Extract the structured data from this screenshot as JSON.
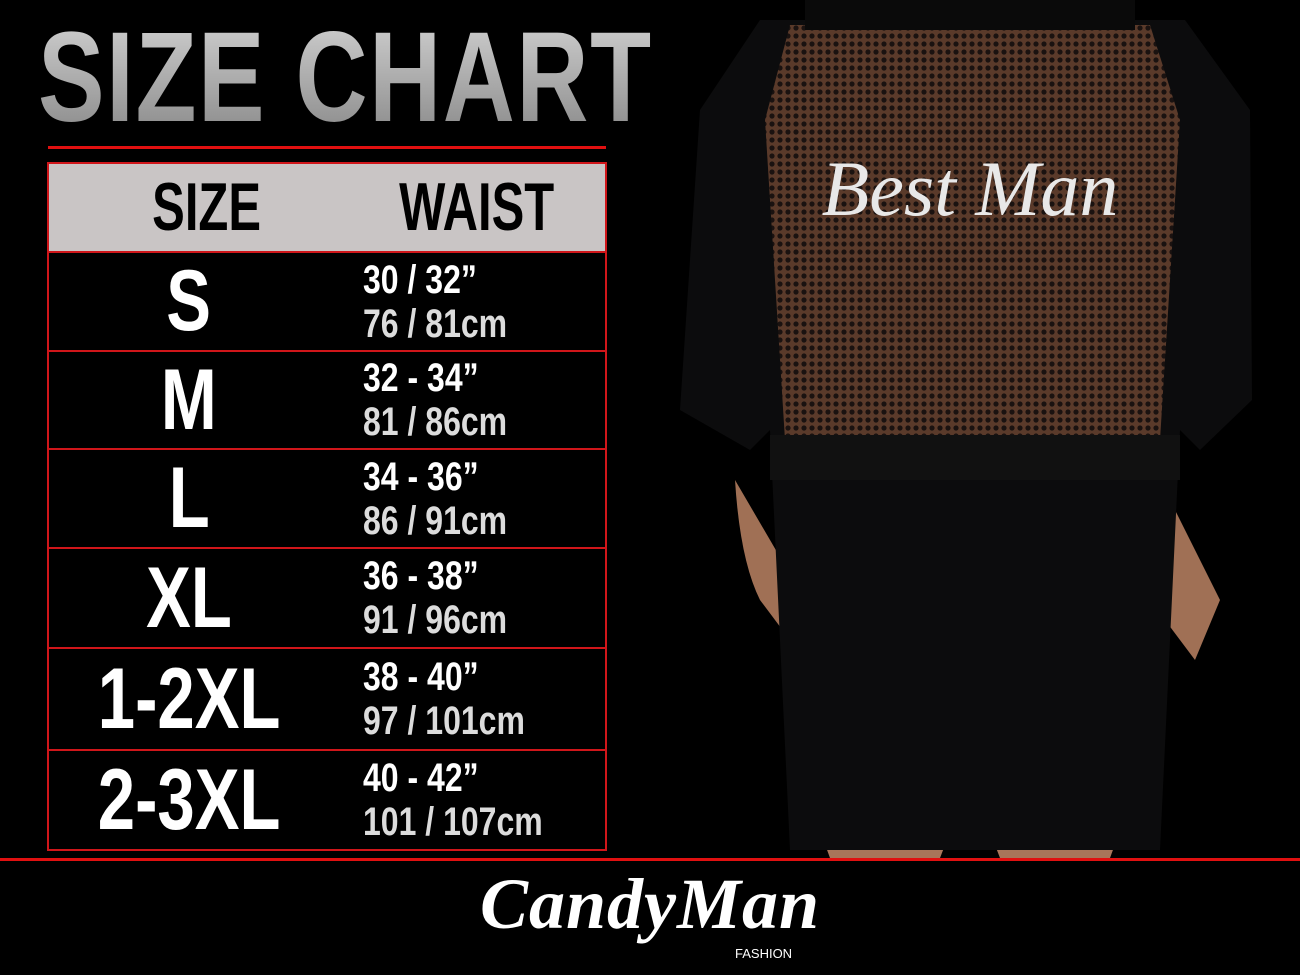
{
  "title": "SIZE CHART",
  "table": {
    "headers": [
      "SIZE",
      "WAIST"
    ],
    "rows": [
      {
        "size": "S",
        "inches": "30 / 32”",
        "cm": "76 / 81cm"
      },
      {
        "size": "M",
        "inches": "32 - 34”",
        "cm": "81 / 86cm"
      },
      {
        "size": "L",
        "inches": "34 - 36”",
        "cm": "86 / 91cm"
      },
      {
        "size": "XL",
        "inches": "36 - 38”",
        "cm": "91 / 96cm"
      },
      {
        "size": "1-2XL",
        "inches": "38 - 40”",
        "cm": "97 / 101cm"
      },
      {
        "size": "2-3XL",
        "inches": "40 - 42”",
        "cm": "101 / 107cm"
      }
    ]
  },
  "garment_print": "Best Man",
  "logo": {
    "brand": "CandyMan",
    "sub": "FASHION"
  },
  "colors": {
    "accent": "#e01010",
    "header_bg": "#c9c5c5",
    "background": "#000000"
  }
}
